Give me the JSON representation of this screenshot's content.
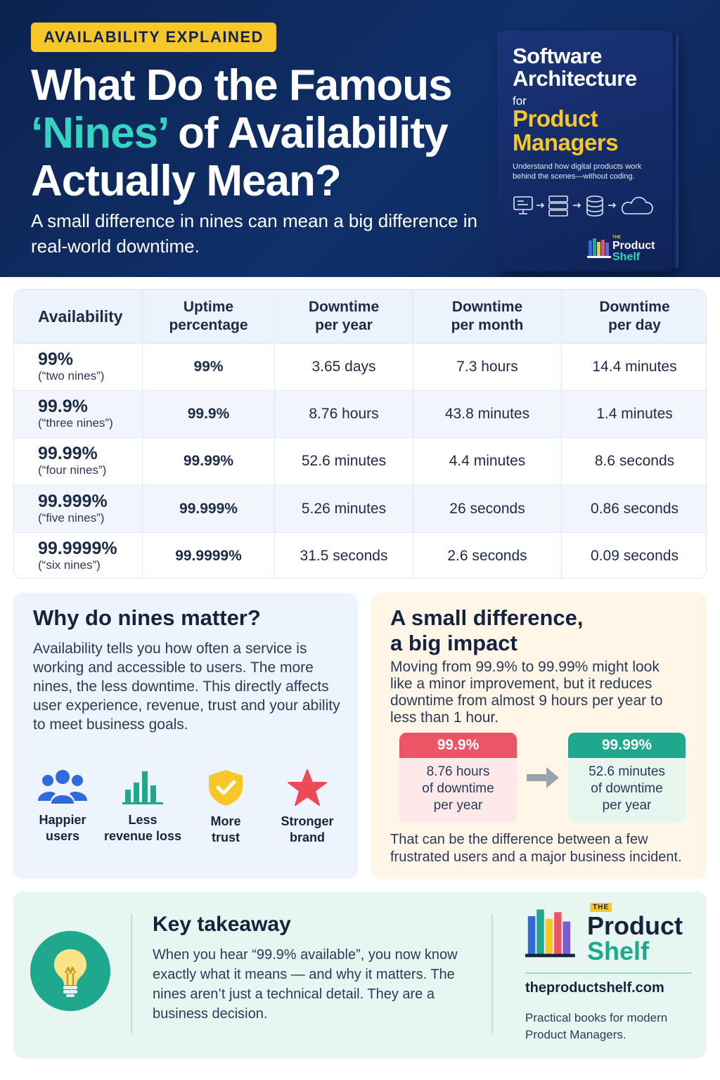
{
  "hero": {
    "eyebrow": "AVAILABILITY EXPLAINED",
    "title_line1": "What Do the Famous",
    "title_accent": "‘Nines’",
    "title_line2_rest": " of Availability",
    "title_line3": "Actually Mean?",
    "subtitle": "A small difference in nines can mean a big difference in real-world downtime."
  },
  "book": {
    "title_line1": "Software",
    "title_line2": "Architecture",
    "for": "for",
    "title_line3": "Product",
    "title_line4": "Managers",
    "description": "Understand how digital products work behind the scenes—without coding.",
    "logo_the": "THE",
    "logo_word1": "Product",
    "logo_word2": "Shelf",
    "icons": [
      "monitor-icon",
      "server-icon",
      "database-icon",
      "cloud-icon"
    ]
  },
  "table": {
    "headers": [
      "Availability",
      "Uptime percentage",
      "Downtime per year",
      "Downtime per month",
      "Downtime per day"
    ],
    "headers_split": [
      [
        "Availability",
        ""
      ],
      [
        "Uptime",
        "percentage"
      ],
      [
        "Downtime",
        "per year"
      ],
      [
        "Downtime",
        "per month"
      ],
      [
        "Downtime",
        "per day"
      ]
    ],
    "rows": [
      {
        "availability": "99%",
        "nickname": "(“two nines”)",
        "uptime": "99%",
        "per_year": "3.65 days",
        "per_month": "7.3 hours",
        "per_day": "14.4 minutes"
      },
      {
        "availability": "99.9%",
        "nickname": "(“three nines”)",
        "uptime": "99.9%",
        "per_year": "8.76 hours",
        "per_month": "43.8 minutes",
        "per_day": "1.4 minutes"
      },
      {
        "availability": "99.99%",
        "nickname": "(“four nines”)",
        "uptime": "99.99%",
        "per_year": "52.6 minutes",
        "per_month": "4.4 minutes",
        "per_day": "8.6 seconds"
      },
      {
        "availability": "99.999%",
        "nickname": "(“five nines”)",
        "uptime": "99.999%",
        "per_year": "5.26 minutes",
        "per_month": "26 seconds",
        "per_day": "0.86 seconds"
      },
      {
        "availability": "99.9999%",
        "nickname": "(“six nines”)",
        "uptime": "99.9999%",
        "per_year": "31.5 seconds",
        "per_month": "2.6 seconds",
        "per_day": "0.09 seconds"
      }
    ]
  },
  "why": {
    "title": "Why do nines matter?",
    "body": "Availability tells you how often a service is working and accessible to users. The more nines, the less downtime. This directly affects user experience, revenue, trust and your ability to meet business goals.",
    "benefits": [
      {
        "line1": "Happier",
        "line2": "users",
        "icon": "users-icon",
        "color": "#2e6bdc"
      },
      {
        "line1": "Less",
        "line2": "revenue loss",
        "icon": "bar-chart-icon",
        "color": "#1fa88d"
      },
      {
        "line1": "More",
        "line2": "trust",
        "icon": "shield-check-icon",
        "color": "#f7c72a"
      },
      {
        "line1": "Stronger",
        "line2": "brand",
        "icon": "star-icon",
        "color": "#ec4a56"
      }
    ]
  },
  "impact": {
    "title_line1": "A small difference,",
    "title_line2": "a big impact",
    "body": "Moving from 99.9% to 99.99% might look like a minor improvement, but it reduces downtime from almost 9 hours per year to less than 1 hour.",
    "before": {
      "label": "99.9%",
      "line1": "8.76 hours",
      "line2": "of downtime",
      "line3": "per year",
      "color": "#ec5565"
    },
    "after": {
      "label": "99.99%",
      "line1": "52.6 minutes",
      "line2": "of downtime",
      "line3": "per year",
      "color": "#1fa88d"
    },
    "footer": "That can be the difference between a few frustrated users and a major business incident."
  },
  "takeaway": {
    "title": "Key takeaway",
    "body": "When you hear “99.9% available”, you now know exactly what it means — and why it matters. The nines aren’t just a technical detail. They are a business decision.",
    "icon": "lightbulb-icon"
  },
  "brand": {
    "the": "THE",
    "word1": "Product",
    "word2": "Shelf",
    "url": "theproductshelf.com",
    "tagline": "Practical books for modern Product Managers."
  },
  "colors": {
    "navy": "#0c2350",
    "accent_teal": "#36d4c0",
    "yellow": "#f7c72a",
    "red": "#ec5565",
    "green": "#1fa88d"
  }
}
